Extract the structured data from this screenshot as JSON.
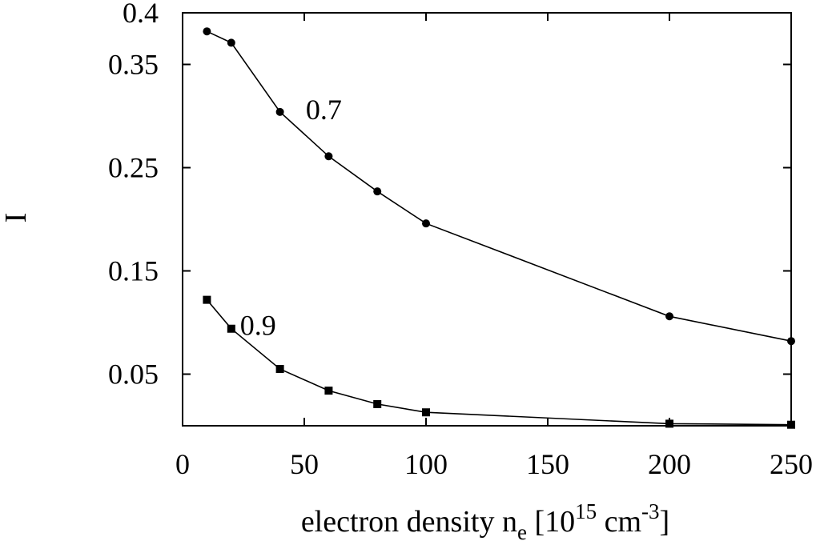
{
  "chart_data": {
    "type": "line",
    "title": "",
    "xlabel": {
      "main": "electron density n",
      "sub": "e",
      "bracket_open": " [10",
      "sup1": "15",
      "unit": " cm",
      "sup2": "-3",
      "bracket_close": "]"
    },
    "ylabel": "I",
    "xlim": [
      0,
      250
    ],
    "ylim": [
      0,
      0.4
    ],
    "xticks": [
      0,
      50,
      100,
      150,
      200,
      250
    ],
    "yticks": [
      0.05,
      0.15,
      0.25,
      0.35,
      0.4
    ],
    "ytick_labels": [
      "0.05",
      "0.15",
      "0.25",
      "0.35",
      "0.4"
    ],
    "grid": false,
    "series": [
      {
        "label": "0.7",
        "marker": "circle",
        "x": [
          10,
          20,
          40,
          60,
          80,
          100,
          200,
          250
        ],
        "y": [
          0.382,
          0.371,
          0.304,
          0.261,
          0.227,
          0.196,
          0.106,
          0.082
        ]
      },
      {
        "label": "0.9",
        "marker": "square",
        "x": [
          10,
          20,
          40,
          60,
          80,
          100,
          200,
          250
        ],
        "y": [
          0.122,
          0.094,
          0.055,
          0.034,
          0.021,
          0.013,
          0.002,
          0.001
        ]
      }
    ],
    "annotations": [
      {
        "text": "0.7",
        "x": 58,
        "y": 0.297
      },
      {
        "text": "0.9",
        "x": 31,
        "y": 0.088
      }
    ]
  }
}
